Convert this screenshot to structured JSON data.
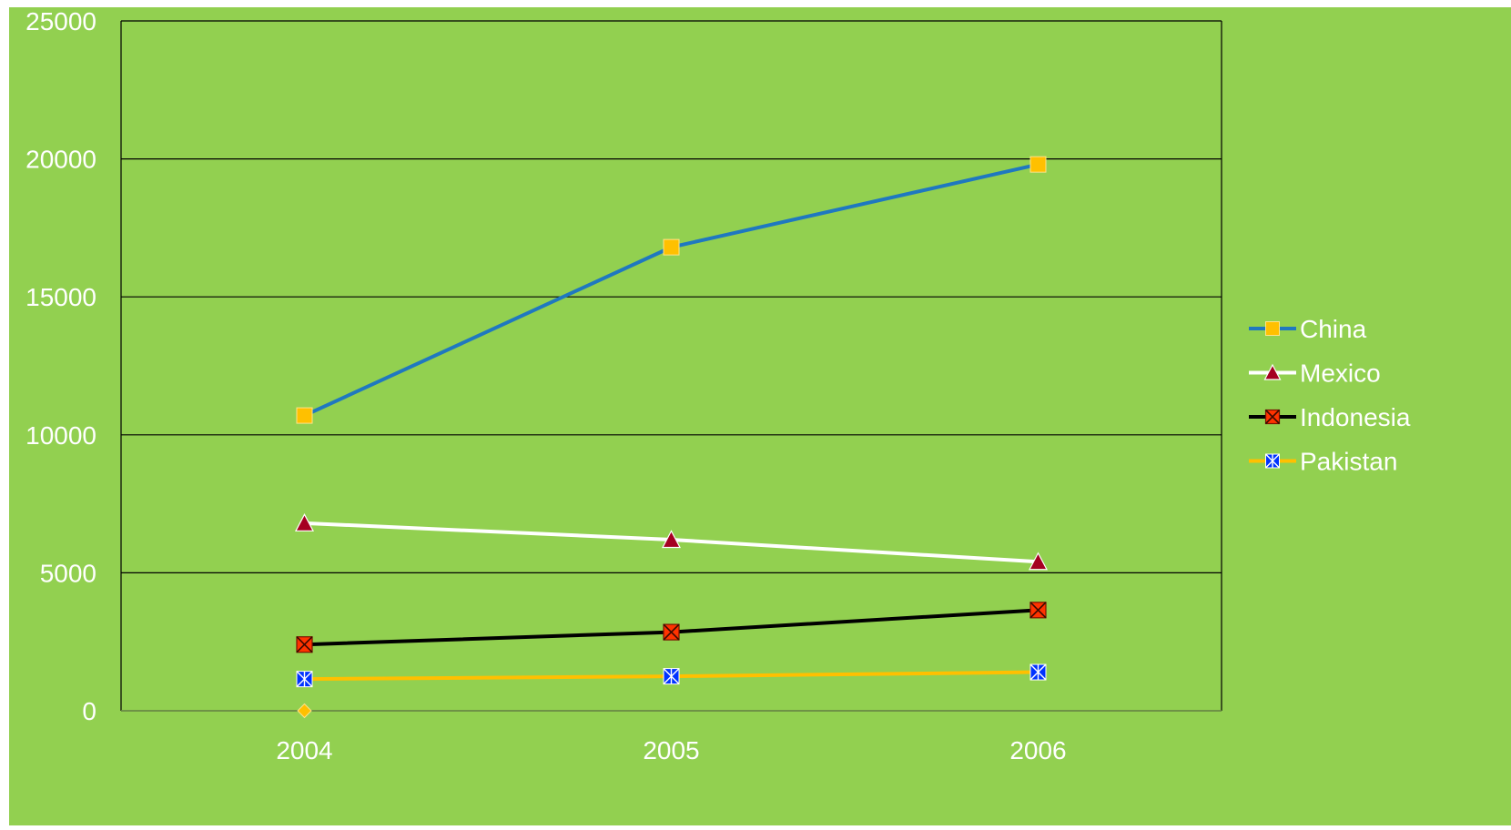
{
  "colors": {
    "background": "#92d050",
    "plot_border": "#000000",
    "gridline": "#000000",
    "text": "#ffffff"
  },
  "chart_data": {
    "type": "line",
    "categories": [
      "2004",
      "2005",
      "2006"
    ],
    "ylim": [
      0,
      25000
    ],
    "yticks": [
      0,
      5000,
      10000,
      15000,
      20000,
      25000
    ],
    "ytick_labels": [
      "0",
      "5000",
      "10000",
      "15000",
      "20000",
      "25000"
    ],
    "grid": true,
    "legend_position": "right",
    "title": "",
    "xlabel": "",
    "ylabel": "",
    "series": [
      {
        "name": "China",
        "values": [
          10700,
          16800,
          19800
        ],
        "line_color": "#1f78c0",
        "marker": "square",
        "marker_color": "#ffc000"
      },
      {
        "name": "Mexico",
        "values": [
          6800,
          6200,
          5400
        ],
        "line_color": "#ffffff",
        "marker": "triangle",
        "marker_color": "#a50021"
      },
      {
        "name": "Indonesia",
        "values": [
          2400,
          2850,
          3650
        ],
        "line_color": "#000000",
        "marker": "square-x",
        "marker_color": "#ff3300"
      },
      {
        "name": "Pakistan",
        "values": [
          1150,
          1250,
          1400
        ],
        "line_color": "#ffc000",
        "marker": "square-star",
        "marker_color": "#0033ff"
      }
    ],
    "extra_points": [
      {
        "x": "2004",
        "y": 0,
        "marker": "diamond",
        "marker_color": "#ffc000"
      }
    ]
  }
}
